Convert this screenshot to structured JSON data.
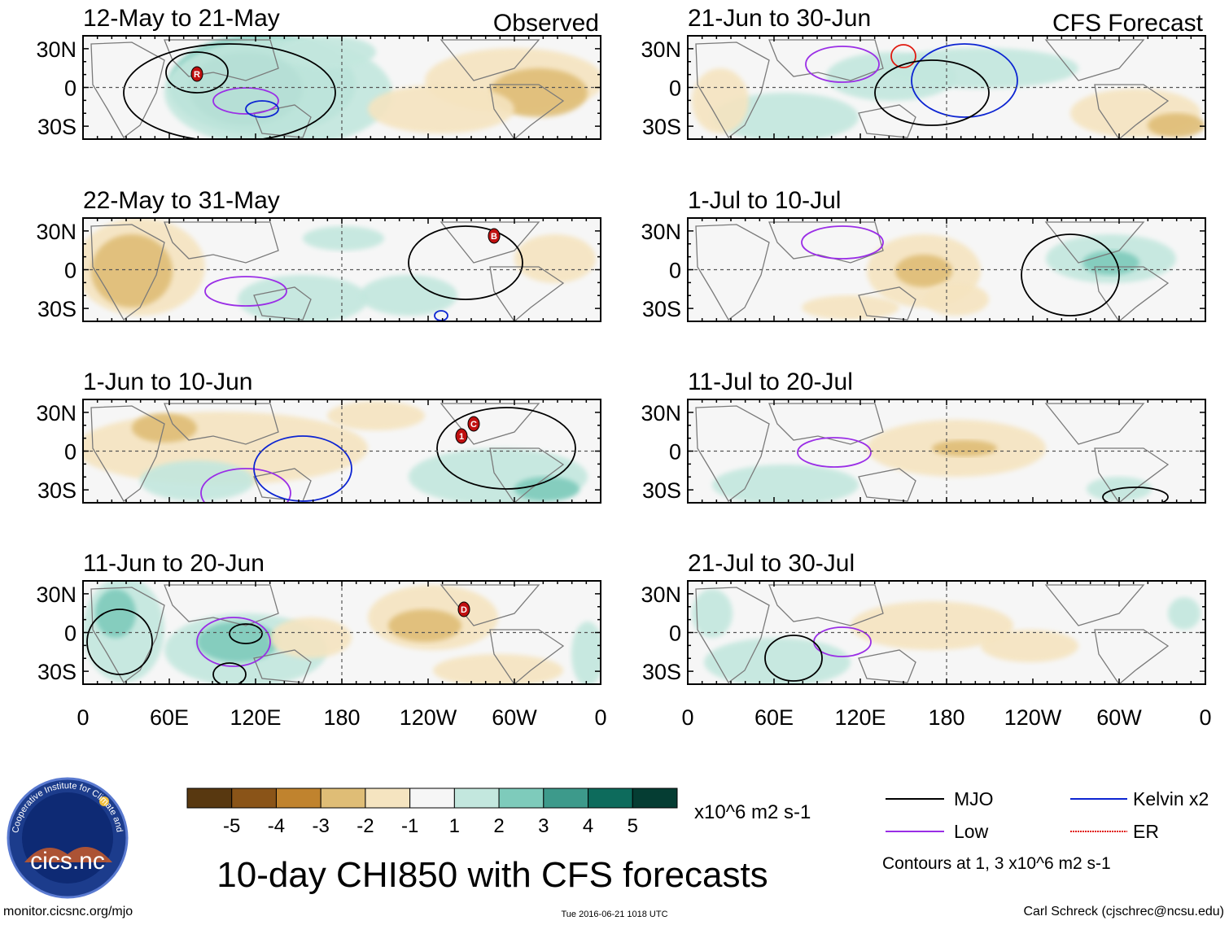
{
  "figure_title": "10-day CHI850 with CFS forecasts",
  "credit_left": "monitor.cicsnc.org/mjo",
  "credit_center": "Tue 2016-06-21 1018 UTC",
  "credit_right": "Carl Schreck (cjschrec@ncsu.edu)",
  "logo": {
    "arc_text": "Cooperative Institute for Climate and Satellites",
    "label": "cics.nc"
  },
  "column_headers": {
    "left": "Observed",
    "right": "CFS Forecast"
  },
  "colorbar": {
    "unit": "x10^6 m2 s-1",
    "tick_labels": [
      "-5",
      "-4",
      "-3",
      "-2",
      "-1",
      "1",
      "2",
      "3",
      "4",
      "5"
    ],
    "colors": [
      "#583810",
      "#8a5418",
      "#c0832e",
      "#dfbd76",
      "#f5e4c0",
      "#f6f6f6",
      "#c3e7de",
      "#7ecbbb",
      "#3d9a8b",
      "#0d6b5c",
      "#053d33"
    ]
  },
  "legend": {
    "items": [
      {
        "label": "MJO",
        "color": "#000000"
      },
      {
        "label": "Kelvin x2",
        "color": "#0c24d2"
      },
      {
        "label": "Low",
        "color": "#9a2ee6"
      },
      {
        "label": "ER",
        "color": "#e01a10"
      }
    ],
    "note": "Contours at 1, 3 x10^6 m2 s-1"
  },
  "chart_data": {
    "type": "heatmap",
    "variable": "10-day mean 850-hPa velocity potential anomaly (CHI850)",
    "units": "x10^6 m2 s-1",
    "lat_ticks": [
      "30N",
      "0",
      "30S"
    ],
    "lon_ticks": [
      "0",
      "60E",
      "120E",
      "180",
      "120W",
      "60W",
      "0"
    ],
    "lat_range": [
      -40,
      40
    ],
    "lon_range": [
      0,
      360
    ],
    "levels": [
      -5,
      -4,
      -3,
      -2,
      -1,
      1,
      2,
      3,
      4,
      5
    ],
    "panels": [
      {
        "title": "12-May to 21-May",
        "source": "Observed",
        "markers": [
          "R"
        ]
      },
      {
        "title": "22-May to 31-May",
        "source": "Observed",
        "markers": [
          "B"
        ]
      },
      {
        "title": "1-Jun to 10-Jun",
        "source": "Observed",
        "markers": [
          "1",
          "C"
        ]
      },
      {
        "title": "11-Jun to 20-Jun",
        "source": "Observed",
        "markers": [
          "D"
        ]
      },
      {
        "title": "21-Jun to 30-Jun",
        "source": "CFS Forecast",
        "markers": []
      },
      {
        "title": "1-Jul to 10-Jul",
        "source": "CFS Forecast",
        "markers": []
      },
      {
        "title": "11-Jul to 20-Jul",
        "source": "CFS Forecast",
        "markers": []
      },
      {
        "title": "21-Jul to 30-Jul",
        "source": "CFS Forecast",
        "markers": []
      }
    ]
  }
}
